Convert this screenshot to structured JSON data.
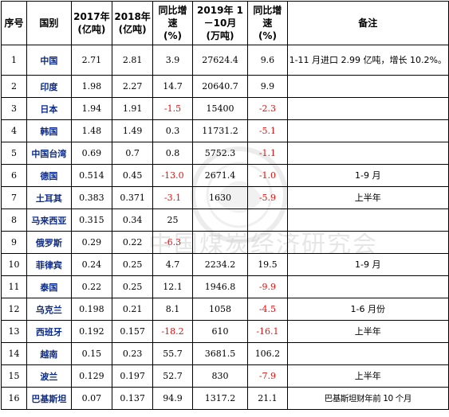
{
  "header": {
    "no": "序号",
    "country": "国别",
    "y2017": [
      "2017年",
      "(亿吨)"
    ],
    "y2018": [
      "2018年",
      "(亿吨)"
    ],
    "yoy1": [
      "同比增速",
      "(%)"
    ],
    "y2019": [
      "2019年 1－10月",
      "(万吨)"
    ],
    "yoy2": [
      "同比增速",
      "(%)"
    ],
    "note": "备注"
  },
  "rows": [
    {
      "no": "1",
      "country": "中国",
      "y2017": "2.71",
      "y2018": "2.81",
      "yoy1": "3.9",
      "yoy1_neg": false,
      "y2019": "27624.4",
      "yoy2": "9.6",
      "yoy2_neg": false,
      "note": "1-11 月进口 2.99 亿吨，增长 10.2%。"
    },
    {
      "no": "2",
      "country": "印度",
      "y2017": "1.98",
      "y2018": "2.27",
      "yoy1": "14.7",
      "yoy1_neg": false,
      "y2019": "20640.7",
      "yoy2": "9.9",
      "yoy2_neg": false,
      "note": ""
    },
    {
      "no": "3",
      "country": "日本",
      "y2017": "1.94",
      "y2018": "1.91",
      "yoy1": "-1.5",
      "yoy1_neg": true,
      "y2019": "15400",
      "yoy2": "-2.3",
      "yoy2_neg": true,
      "note": ""
    },
    {
      "no": "4",
      "country": "韩国",
      "y2017": "1.48",
      "y2018": "1.49",
      "yoy1": "0.3",
      "yoy1_neg": false,
      "y2019": "11731.2",
      "yoy2": "-5.1",
      "yoy2_neg": true,
      "note": ""
    },
    {
      "no": "5",
      "country": "中国台湾",
      "y2017": "0.69",
      "y2018": "0.7",
      "yoy1": "0.8",
      "yoy1_neg": false,
      "y2019": "5752.3",
      "yoy2": "-1.1",
      "yoy2_neg": true,
      "note": ""
    },
    {
      "no": "6",
      "country": "德国",
      "y2017": "0.514",
      "y2018": "0.45",
      "yoy1": "-13.0",
      "yoy1_neg": true,
      "y2019": "2671.4",
      "yoy2": "-1.0",
      "yoy2_neg": true,
      "note": "1-9 月"
    },
    {
      "no": "7",
      "country": "土耳其",
      "y2017": "0.383",
      "y2018": "0.371",
      "yoy1": "-3.1",
      "yoy1_neg": true,
      "y2019": "1630",
      "yoy2": "-5.9",
      "yoy2_neg": true,
      "note": "上半年"
    },
    {
      "no": "8",
      "country": "马来西亚",
      "y2017": "0.315",
      "y2018": "0.34",
      "yoy1": "25",
      "yoy1_neg": false,
      "y2019": "",
      "yoy2": "",
      "yoy2_neg": false,
      "note": ""
    },
    {
      "no": "9",
      "country": "俄罗斯",
      "y2017": "0.29",
      "y2018": "0.22",
      "yoy1": "-6.3",
      "yoy1_neg": true,
      "y2019": "",
      "yoy2": "",
      "yoy2_neg": false,
      "note": ""
    },
    {
      "no": "10",
      "country": "菲律宾",
      "y2017": "0.24",
      "y2018": "0.25",
      "yoy1": "4.7",
      "yoy1_neg": false,
      "y2019": "2234.2",
      "yoy2": "19.5",
      "yoy2_neg": false,
      "note": "1-9 月"
    },
    {
      "no": "11",
      "country": "泰国",
      "y2017": "0.22",
      "y2018": "0.25",
      "yoy1": "12.1",
      "yoy1_neg": false,
      "y2019": "1946.8",
      "yoy2": "-9.9",
      "yoy2_neg": true,
      "note": ""
    },
    {
      "no": "12",
      "country": "乌克兰",
      "y2017": "0.198",
      "y2018": "0.21",
      "yoy1": "8.1",
      "yoy1_neg": false,
      "y2019": "1058",
      "yoy2": "-4.5",
      "yoy2_neg": true,
      "note": "1-6 月份"
    },
    {
      "no": "13",
      "country": "西班牙",
      "y2017": "0.192",
      "y2018": "0.157",
      "yoy1": "-18.2",
      "yoy1_neg": true,
      "y2019": "610",
      "yoy2": "-16.1",
      "yoy2_neg": true,
      "note": "上半年"
    },
    {
      "no": "14",
      "country": "越南",
      "y2017": "0.15",
      "y2018": "0.23",
      "yoy1": "55.7",
      "yoy1_neg": false,
      "y2019": "3681.5",
      "yoy2": "106.2",
      "yoy2_neg": false,
      "note": ""
    },
    {
      "no": "15",
      "country": "波兰",
      "y2017": "0.129",
      "y2018": "0.197",
      "yoy1": "52.7",
      "yoy1_neg": false,
      "y2019": "830",
      "yoy2": "-7.9",
      "yoy2_neg": true,
      "note": "上半年"
    },
    {
      "no": "16",
      "country": "巴基斯坦",
      "y2017": "0.07",
      "y2018": "0.137",
      "yoy1": "94.9",
      "yoy1_neg": false,
      "y2019": "1317.2",
      "yoy2": "21.1",
      "yoy2_neg": false,
      "note": "巴基斯坦财年前 10 个月"
    }
  ],
  "watermark": {
    "text": "中国煤炭经济研究会"
  },
  "colors": {
    "country": "#0b2a8a",
    "negative": "#e81010",
    "watermark": "#c9c9c9"
  }
}
